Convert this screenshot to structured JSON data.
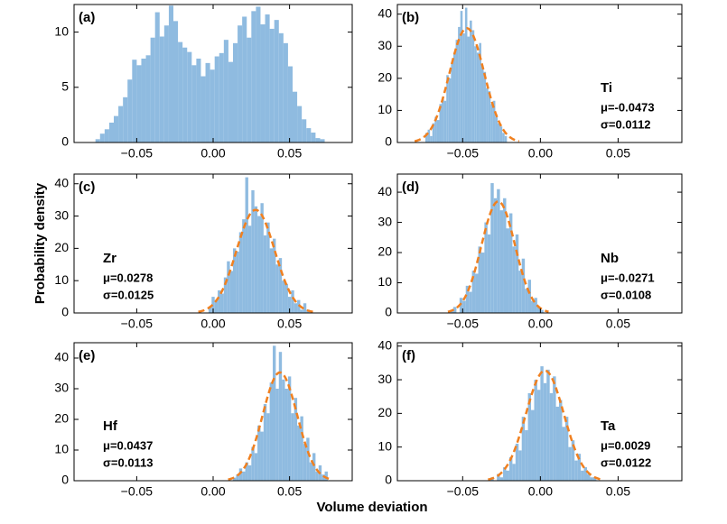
{
  "xlabel": "Volume deviation",
  "ylabel": "Probability density",
  "chart_data": [
    {
      "type": "histogram",
      "panel_label": "(a)",
      "color": "#8fbbe0",
      "bins": [
        -0.077,
        -0.074,
        -0.071,
        -0.068,
        -0.065,
        -0.062,
        -0.059,
        -0.056,
        -0.053,
        -0.05,
        -0.047,
        -0.044,
        -0.041,
        -0.038,
        -0.035,
        -0.032,
        -0.029,
        -0.026,
        -0.023,
        -0.02,
        -0.017,
        -0.014,
        -0.011,
        -0.008,
        -0.005,
        -0.002,
        0.001,
        0.004,
        0.007,
        0.01,
        0.013,
        0.016,
        0.019,
        0.022,
        0.025,
        0.028,
        0.031,
        0.034,
        0.037,
        0.04,
        0.043,
        0.046,
        0.049,
        0.052,
        0.055,
        0.058,
        0.061,
        0.064,
        0.067,
        0.07,
        0.073
      ],
      "values": [
        0.3,
        0.8,
        1.2,
        1.8,
        2.4,
        3.3,
        4.1,
        5.7,
        7.5,
        7.0,
        7.6,
        7.9,
        9.5,
        11.8,
        9.6,
        10.6,
        12.4,
        11.0,
        9.1,
        8.6,
        8.2,
        7.0,
        7.6,
        6.0,
        7.2,
        6.6,
        7.8,
        8.1,
        9.3,
        7.3,
        9.0,
        10.6,
        11.4,
        9.5,
        11.9,
        12.3,
        10.7,
        11.6,
        10.3,
        11.1,
        9.9,
        9.0,
        6.9,
        4.6,
        3.3,
        2.1,
        1.3,
        0.9,
        0.4,
        0.3
      ],
      "xlim": [
        -0.091,
        0.091
      ],
      "xticks": [
        {
          "value": -0.05,
          "label": "−0.05"
        },
        {
          "value": 0,
          "label": "0.00"
        },
        {
          "value": 0.05,
          "label": "0.05"
        }
      ],
      "ylim": [
        0,
        12.5
      ],
      "yticks": [
        0,
        5,
        10
      ]
    },
    {
      "type": "histogram",
      "panel_label": "(b)",
      "color": "#8fbbe0",
      "bins": [
        -0.0755,
        -0.074,
        -0.0725,
        -0.071,
        -0.0695,
        -0.068,
        -0.0665,
        -0.065,
        -0.0635,
        -0.062,
        -0.0605,
        -0.059,
        -0.0575,
        -0.056,
        -0.0545,
        -0.053,
        -0.0515,
        -0.05,
        -0.0485,
        -0.047,
        -0.0455,
        -0.044,
        -0.0425,
        -0.041,
        -0.0395,
        -0.038,
        -0.0365,
        -0.035,
        -0.0335,
        -0.032,
        -0.0305,
        -0.029,
        -0.0275,
        -0.026,
        -0.0245,
        -0.023,
        -0.0215
      ],
      "values": [
        0,
        3,
        4,
        2,
        6,
        8,
        7,
        12,
        14,
        13,
        21,
        20,
        25,
        28,
        32,
        36,
        41,
        34,
        42,
        33,
        38,
        35,
        30,
        28,
        31,
        24,
        22,
        17,
        16,
        12,
        13,
        8,
        6,
        5,
        3,
        2
      ],
      "fit": {
        "element": "Ti",
        "mu": -0.0473,
        "mu_label": "μ=-0.0473",
        "sigma": 0.0112,
        "sigma_label": "σ=0.0112",
        "color": "#f08020",
        "label_side": "right"
      },
      "xlim": [
        -0.092,
        0.091
      ],
      "xticks": [
        {
          "value": -0.05,
          "label": "−0.05"
        },
        {
          "value": 0,
          "label": "0.00"
        },
        {
          "value": 0.05,
          "label": "0.05"
        }
      ],
      "ylim": [
        0,
        43
      ],
      "yticks": [
        0,
        10,
        20,
        30,
        40
      ]
    },
    {
      "type": "histogram",
      "panel_label": "(c)",
      "color": "#8fbbe0",
      "bins": [
        -0.003,
        -0.001,
        0.001,
        0.003,
        0.005,
        0.007,
        0.009,
        0.011,
        0.013,
        0.015,
        0.017,
        0.019,
        0.021,
        0.023,
        0.025,
        0.027,
        0.029,
        0.031,
        0.033,
        0.035,
        0.037,
        0.039,
        0.041,
        0.043,
        0.045,
        0.047,
        0.049,
        0.051,
        0.053,
        0.055,
        0.057,
        0.059,
        0.061,
        0.063
      ],
      "values": [
        2,
        5,
        4,
        7,
        6,
        11,
        16,
        13,
        20,
        19,
        25,
        29,
        42,
        27,
        38,
        33,
        30,
        34,
        24,
        28,
        20,
        23,
        15,
        17,
        10,
        9,
        5,
        7,
        3,
        4,
        1,
        3,
        1
      ],
      "fit": {
        "element": "Zr",
        "mu": 0.0278,
        "mu_label": "μ=0.0278",
        "sigma": 0.0125,
        "sigma_label": "σ=0.0125",
        "color": "#f08020",
        "label_side": "left"
      },
      "xlim": [
        -0.091,
        0.091
      ],
      "xticks": [
        {
          "value": -0.05,
          "label": "−0.05"
        },
        {
          "value": 0,
          "label": "0.00"
        },
        {
          "value": 0.05,
          "label": "0.05"
        }
      ],
      "ylim": [
        0,
        43
      ],
      "yticks": [
        0,
        10,
        20,
        30,
        40
      ]
    },
    {
      "type": "histogram",
      "panel_label": "(d)",
      "color": "#8fbbe0",
      "bins": [
        -0.058,
        -0.056,
        -0.054,
        -0.052,
        -0.05,
        -0.048,
        -0.046,
        -0.044,
        -0.042,
        -0.04,
        -0.038,
        -0.036,
        -0.034,
        -0.032,
        -0.03,
        -0.028,
        -0.026,
        -0.024,
        -0.022,
        -0.02,
        -0.018,
        -0.016,
        -0.014,
        -0.012,
        -0.01,
        -0.008,
        -0.006,
        -0.004,
        -0.002,
        0,
        0.002
      ],
      "values": [
        1,
        2,
        0,
        5,
        4,
        9,
        7,
        14,
        13,
        22,
        20,
        30,
        26,
        43,
        38,
        41,
        34,
        38,
        28,
        33,
        22,
        26,
        14,
        18,
        8,
        11,
        4,
        5,
        2,
        1
      ],
      "fit": {
        "element": "Nb",
        "mu": -0.0271,
        "mu_label": "μ=-0.0271",
        "sigma": 0.0108,
        "sigma_label": "σ=0.0108",
        "color": "#f08020",
        "label_side": "right"
      },
      "xlim": [
        -0.092,
        0.091
      ],
      "xticks": [
        {
          "value": -0.05,
          "label": "−0.05"
        },
        {
          "value": 0,
          "label": "0.00"
        },
        {
          "value": 0.05,
          "label": "0.05"
        }
      ],
      "ylim": [
        0,
        46
      ],
      "yticks": [
        0,
        10,
        20,
        30,
        40
      ]
    },
    {
      "type": "histogram",
      "panel_label": "(e)",
      "color": "#8fbbe0",
      "bins": [
        0.013,
        0.015,
        0.017,
        0.019,
        0.021,
        0.023,
        0.025,
        0.027,
        0.029,
        0.031,
        0.033,
        0.035,
        0.037,
        0.039,
        0.041,
        0.043,
        0.045,
        0.047,
        0.049,
        0.051,
        0.053,
        0.055,
        0.057,
        0.059,
        0.061,
        0.063,
        0.065,
        0.067,
        0.069,
        0.071,
        0.073,
        0.075
      ],
      "values": [
        1,
        2,
        4,
        3,
        6,
        5,
        11,
        9,
        18,
        16,
        25,
        22,
        32,
        44,
        30,
        42,
        33,
        30,
        34,
        22,
        27,
        18,
        21,
        12,
        14,
        6,
        9,
        3,
        5,
        2,
        3
      ],
      "fit": {
        "element": "Hf",
        "mu": 0.0437,
        "mu_label": "μ=0.0437",
        "sigma": 0.0113,
        "sigma_label": "σ=0.0113",
        "color": "#f08020",
        "label_side": "left"
      },
      "xlim": [
        -0.091,
        0.091
      ],
      "xticks": [
        {
          "value": -0.05,
          "label": "−0.05"
        },
        {
          "value": 0,
          "label": "0.00"
        },
        {
          "value": 0.05,
          "label": "0.05"
        }
      ],
      "ylim": [
        0,
        45
      ],
      "yticks": [
        0,
        10,
        20,
        30,
        40
      ]
    },
    {
      "type": "histogram",
      "panel_label": "(f)",
      "color": "#8fbbe0",
      "bins": [
        -0.032,
        -0.03,
        -0.028,
        -0.026,
        -0.024,
        -0.022,
        -0.02,
        -0.018,
        -0.016,
        -0.014,
        -0.012,
        -0.01,
        -0.008,
        -0.006,
        -0.004,
        -0.002,
        0,
        0.002,
        0.004,
        0.006,
        0.008,
        0.01,
        0.012,
        0.014,
        0.016,
        0.018,
        0.02,
        0.022,
        0.024,
        0.026,
        0.028,
        0.03,
        0.032,
        0.034,
        0.036
      ],
      "values": [
        1,
        0,
        2,
        1,
        4,
        3,
        7,
        5,
        11,
        9,
        19,
        15,
        26,
        21,
        30,
        27,
        34,
        29,
        33,
        26,
        31,
        22,
        24,
        16,
        19,
        10,
        12,
        6,
        8,
        3,
        4,
        2,
        1,
        1
      ],
      "fit": {
        "element": "Ta",
        "mu": 0.0029,
        "mu_label": "μ=0.0029",
        "sigma": 0.0122,
        "sigma_label": "σ=0.0122",
        "color": "#f08020",
        "label_side": "right"
      },
      "xlim": [
        -0.092,
        0.091
      ],
      "xticks": [
        {
          "value": -0.05,
          "label": "−0.05"
        },
        {
          "value": 0,
          "label": "0.00"
        },
        {
          "value": 0.05,
          "label": "0.05"
        }
      ],
      "ylim": [
        0,
        41
      ],
      "yticks": [
        0,
        10,
        20,
        30,
        40
      ]
    }
  ]
}
